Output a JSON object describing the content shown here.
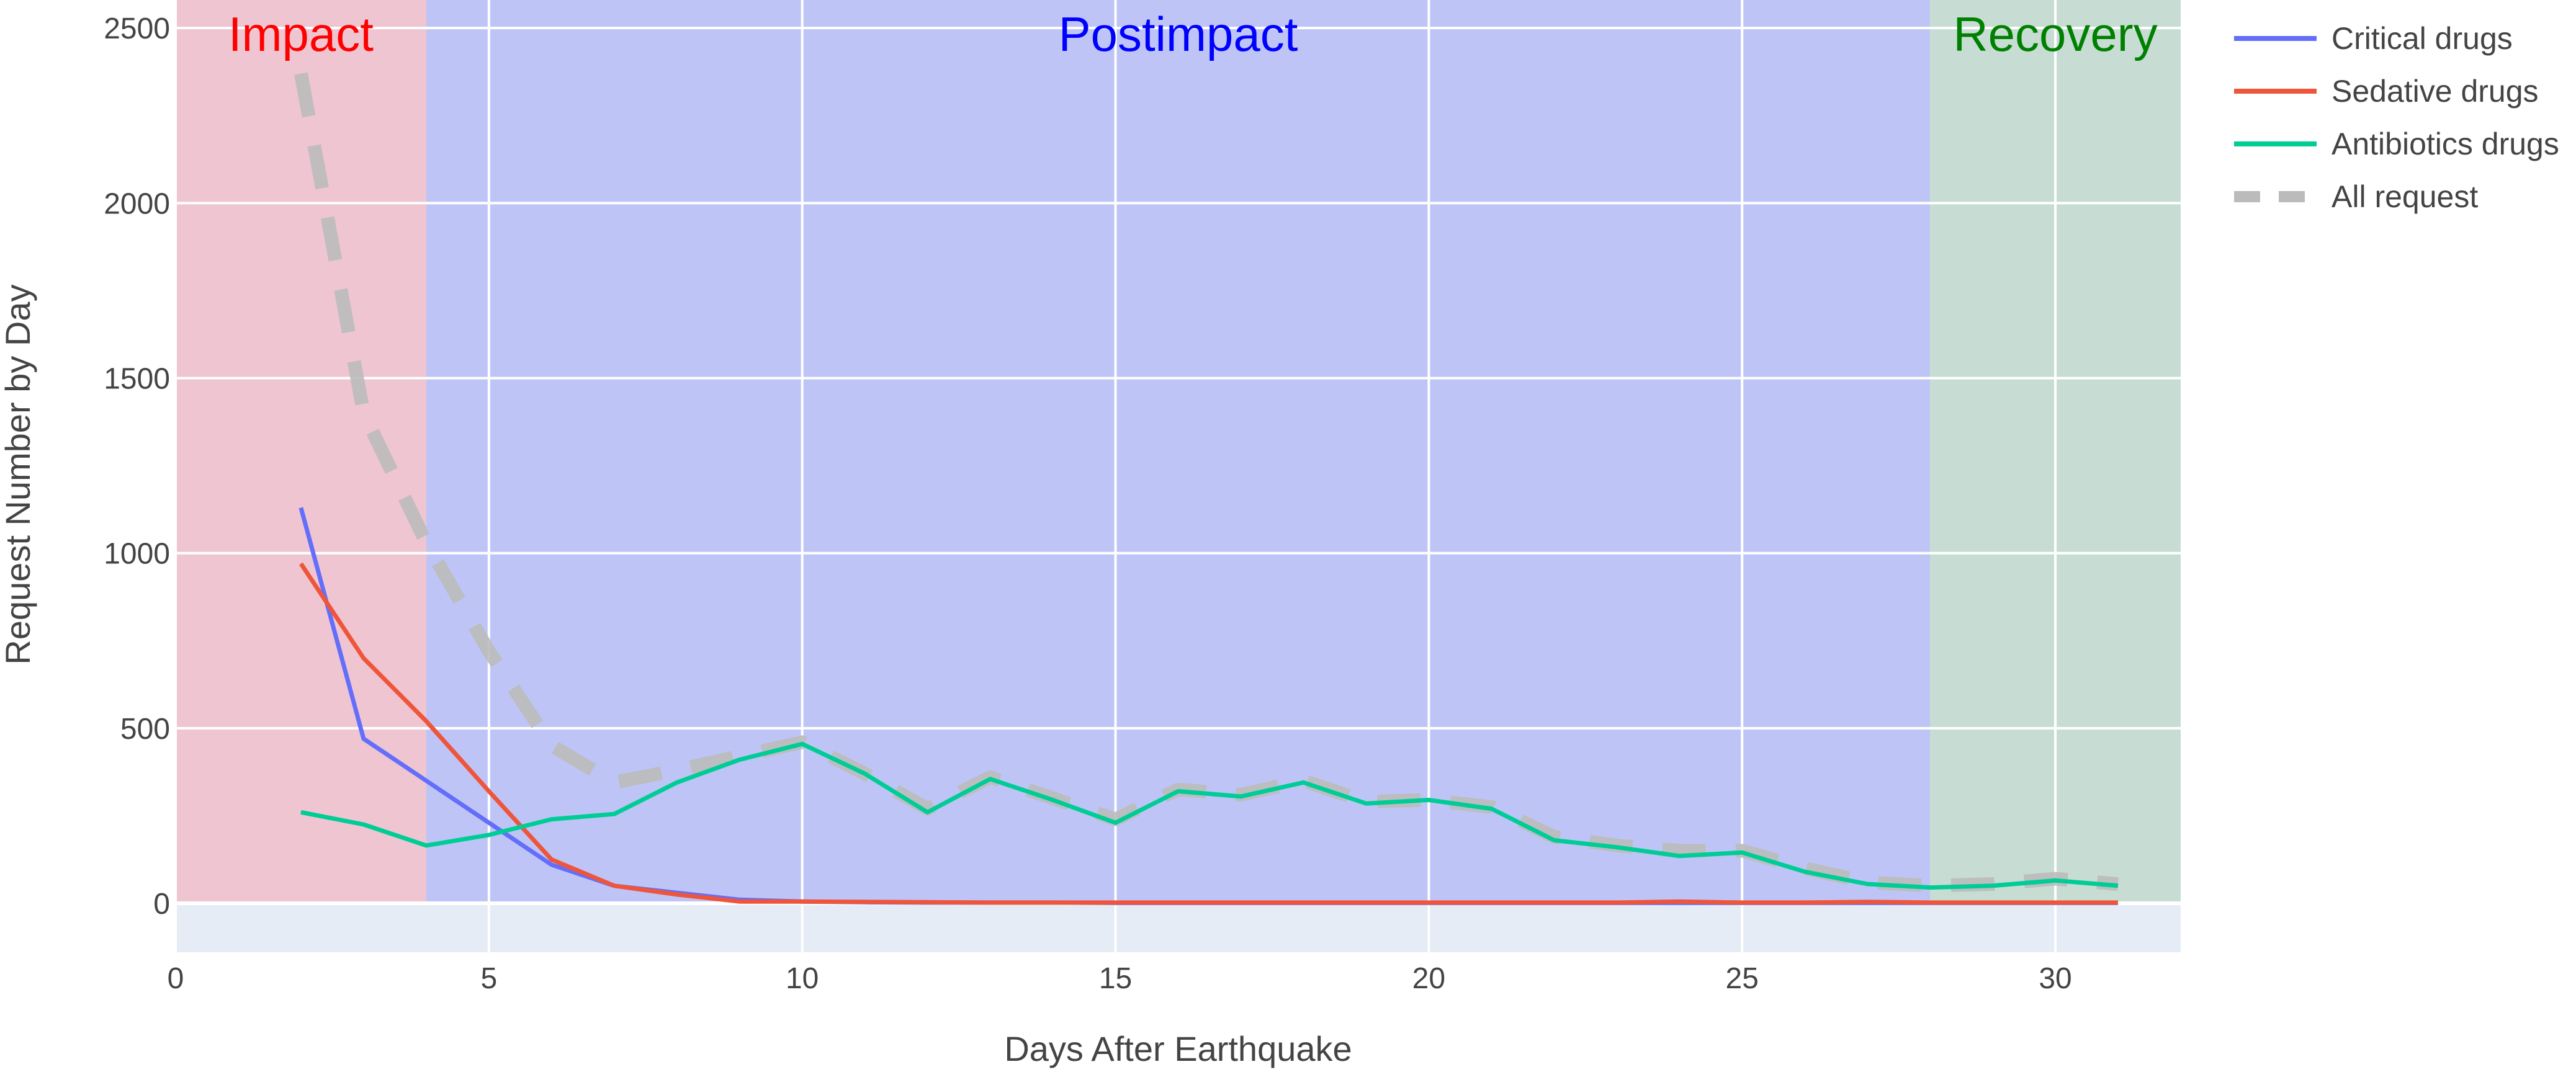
{
  "chart_data": {
    "type": "line",
    "xlabel": "Days After Earthquake",
    "ylabel": "Request Number by Day",
    "xlim": [
      0,
      32
    ],
    "ylim": [
      -140,
      2580
    ],
    "xticks": [
      0,
      5,
      10,
      15,
      20,
      25,
      30
    ],
    "yticks": [
      0,
      500,
      1000,
      1500,
      2000,
      2500
    ],
    "grid": true,
    "legend_position": "top-right, outside plot",
    "background_color": "#e5ecf6",
    "regions": [
      {
        "label": "Impact",
        "x0": 0,
        "x1": 4,
        "color": "#f2b8c6",
        "label_color": "#ff0000"
      },
      {
        "label": "Postimpact",
        "x0": 4,
        "x1": 28,
        "color": "#b0b8f6",
        "label_color": "#0000ff"
      },
      {
        "label": "Recovery",
        "x0": 28,
        "x1": 32,
        "color": "#bcd8c8",
        "label_color": "#008000"
      }
    ],
    "series": [
      {
        "name": "Critical drugs",
        "color": "#636efa",
        "dash": "solid",
        "x": [
          2,
          3,
          4,
          5,
          6,
          7,
          8,
          9,
          10,
          11,
          12,
          13,
          14,
          15,
          16,
          17,
          18,
          19,
          20,
          21,
          22,
          23,
          24,
          25,
          26,
          27,
          28,
          29,
          30,
          31
        ],
        "y": [
          1130,
          470,
          350,
          230,
          110,
          50,
          30,
          10,
          5,
          3,
          2,
          2,
          2,
          1,
          1,
          1,
          1,
          1,
          1,
          1,
          1,
          1,
          1,
          1,
          1,
          1,
          1,
          1,
          1,
          1
        ]
      },
      {
        "name": "Sedative drugs",
        "color": "#ef553b",
        "dash": "solid",
        "x": [
          2,
          3,
          4,
          5,
          6,
          7,
          8,
          9,
          10,
          11,
          12,
          13,
          14,
          15,
          16,
          17,
          18,
          19,
          20,
          21,
          22,
          23,
          24,
          25,
          26,
          27,
          28,
          29,
          30,
          31
        ],
        "y": [
          970,
          700,
          520,
          320,
          125,
          50,
          25,
          5,
          5,
          4,
          3,
          2,
          2,
          2,
          2,
          2,
          2,
          2,
          2,
          2,
          2,
          2,
          5,
          2,
          2,
          4,
          2,
          2,
          2,
          2
        ]
      },
      {
        "name": "Antibiotics drugs",
        "color": "#00cc96",
        "dash": "solid",
        "x": [
          2,
          3,
          4,
          5,
          6,
          7,
          8,
          9,
          10,
          11,
          12,
          13,
          14,
          15,
          16,
          17,
          18,
          19,
          20,
          21,
          22,
          23,
          24,
          25,
          26,
          27,
          28,
          29,
          30,
          31
        ],
        "y": [
          260,
          225,
          165,
          195,
          240,
          255,
          345,
          410,
          455,
          370,
          260,
          355,
          295,
          230,
          320,
          305,
          345,
          285,
          295,
          270,
          180,
          160,
          135,
          145,
          90,
          55,
          45,
          50,
          65,
          50
        ]
      },
      {
        "name": "All request",
        "color": "#bbbbbb",
        "dash": "dash",
        "x": [
          2,
          3,
          4,
          5,
          6,
          7,
          8,
          9,
          10,
          11,
          12,
          13,
          14,
          15,
          16,
          17,
          18,
          19,
          20,
          21,
          22,
          23,
          24,
          25,
          26,
          27,
          28,
          29,
          30,
          31
        ],
        "y": [
          2370,
          1400,
          1030,
          720,
          450,
          345,
          380,
          420,
          460,
          370,
          270,
          360,
          300,
          240,
          325,
          310,
          350,
          290,
          295,
          275,
          190,
          165,
          150,
          150,
          100,
          60,
          50,
          55,
          70,
          55
        ]
      }
    ]
  }
}
